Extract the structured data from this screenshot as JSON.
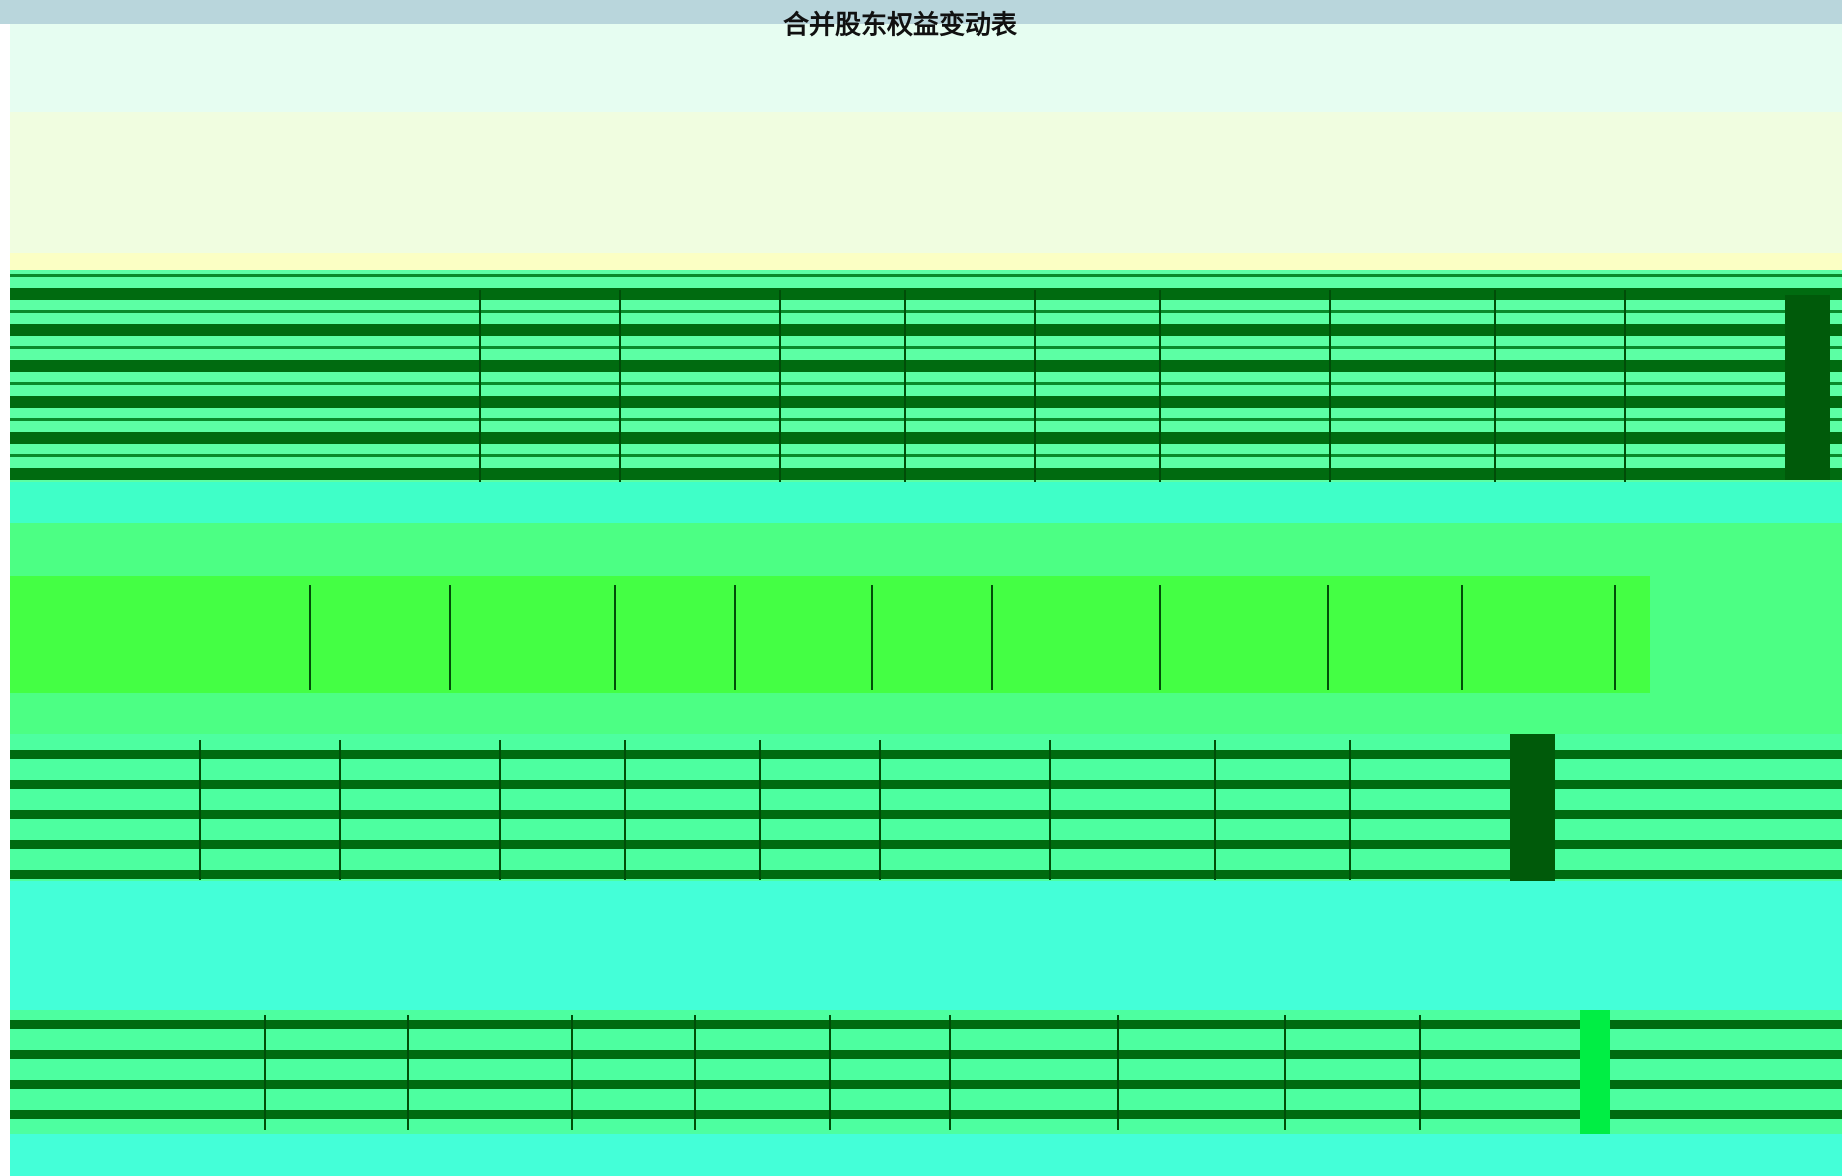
{
  "title": "合并股东权益变动表"
}
